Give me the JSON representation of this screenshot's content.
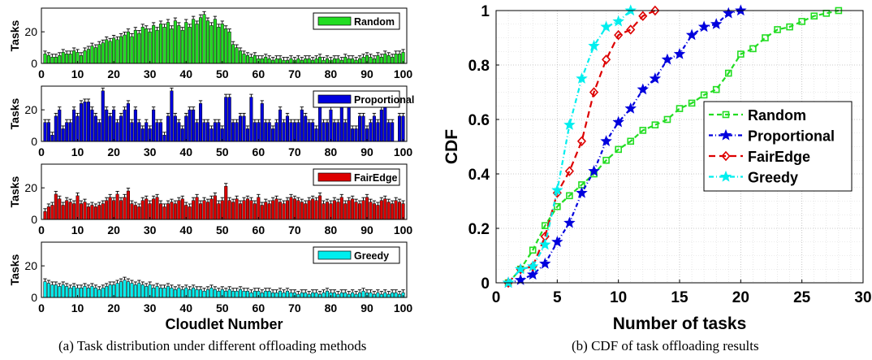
{
  "left_figure": {
    "caption": "(a)  Task distribution under different offloading methods",
    "xlabel": "Cloudlet Number",
    "ylabel": "Tasks",
    "xticks": [
      0,
      10,
      20,
      30,
      40,
      50,
      60,
      70,
      80,
      90,
      100
    ],
    "yticks": [
      0,
      20
    ],
    "ylim": [
      0,
      35
    ],
    "xlim": [
      0,
      101
    ]
  },
  "right_figure": {
    "caption": "(b)  CDF of task offloading results"
  },
  "chart_data": [
    {
      "type": "bar",
      "legend": "Random",
      "color": "#22dd22",
      "xlabel": "",
      "ylabel": "Tasks",
      "ylim": [
        0,
        35
      ],
      "xlim": [
        0,
        101
      ],
      "values": [
        6,
        5,
        4,
        4,
        5,
        7,
        6,
        6,
        8,
        7,
        5,
        8,
        9,
        11,
        10,
        12,
        13,
        15,
        14,
        16,
        15,
        17,
        18,
        20,
        17,
        21,
        19,
        23,
        22,
        20,
        24,
        21,
        25,
        23,
        26,
        22,
        27,
        24,
        21,
        26,
        23,
        28,
        25,
        29,
        31,
        27,
        24,
        28,
        23,
        25,
        22,
        20,
        12,
        10,
        8,
        6,
        5,
        4,
        5,
        3,
        3,
        4,
        3,
        2,
        3,
        3,
        2,
        2,
        3,
        2,
        3,
        2,
        3,
        3,
        2,
        3,
        4,
        2,
        3,
        2,
        3,
        3,
        2,
        4,
        3,
        3,
        2,
        3,
        4,
        5,
        4,
        3,
        5,
        4,
        6,
        5,
        4,
        6,
        6,
        7
      ]
    },
    {
      "type": "bar",
      "legend": "Proportional",
      "color": "#0000dd",
      "xlabel": "",
      "ylabel": "Tasks",
      "ylim": [
        0,
        35
      ],
      "xlim": [
        0,
        101
      ],
      "values": [
        12,
        12,
        4,
        16,
        20,
        8,
        12,
        12,
        20,
        16,
        24,
        25,
        25,
        20,
        16,
        12,
        32,
        20,
        16,
        20,
        12,
        16,
        20,
        24,
        12,
        20,
        12,
        8,
        12,
        8,
        20,
        12,
        12,
        4,
        16,
        32,
        16,
        12,
        8,
        16,
        20,
        20,
        12,
        24,
        12,
        12,
        8,
        12,
        12,
        8,
        28,
        28,
        12,
        12,
        16,
        16,
        8,
        28,
        12,
        12,
        24,
        12,
        12,
        8,
        12,
        20,
        12,
        16,
        12,
        12,
        12,
        20,
        16,
        12,
        12,
        8,
        24,
        12,
        12,
        20,
        12,
        12,
        24,
        12,
        28,
        8,
        8,
        16,
        16,
        8,
        12,
        16,
        12,
        20,
        28,
        12,
        12,
        0,
        16,
        16
      ]
    },
    {
      "type": "bar",
      "legend": "FairEdge",
      "color": "#dd0000",
      "xlabel": "",
      "ylabel": "Tasks",
      "ylim": [
        0,
        35
      ],
      "xlim": [
        0,
        101
      ],
      "values": [
        5,
        8,
        9,
        16,
        13,
        9,
        12,
        11,
        10,
        15,
        10,
        11,
        8,
        9,
        8,
        9,
        10,
        12,
        14,
        12,
        16,
        12,
        14,
        18,
        10,
        9,
        8,
        12,
        13,
        10,
        13,
        14,
        10,
        8,
        10,
        11,
        10,
        12,
        13,
        9,
        8,
        12,
        14,
        10,
        12,
        11,
        13,
        15,
        10,
        12,
        21,
        12,
        11,
        13,
        10,
        12,
        13,
        12,
        10,
        14,
        9,
        11,
        10,
        12,
        13,
        11,
        10,
        12,
        14,
        13,
        12,
        11,
        10,
        12,
        13,
        12,
        15,
        10,
        11,
        10,
        12,
        11,
        14,
        10,
        12,
        13,
        11,
        10,
        12,
        14,
        11,
        10,
        9,
        12,
        13,
        11,
        10,
        12,
        11,
        10
      ]
    },
    {
      "type": "bar",
      "legend": "Greedy",
      "color": "#00eeee",
      "xlabel": "Cloudlet Number",
      "ylabel": "Tasks",
      "ylim": [
        0,
        35
      ],
      "xlim": [
        0,
        101
      ],
      "values": [
        10,
        9,
        8,
        8,
        7,
        8,
        7,
        6,
        7,
        6,
        6,
        7,
        6,
        7,
        6,
        5,
        6,
        7,
        8,
        8,
        9,
        10,
        11,
        10,
        9,
        8,
        9,
        8,
        7,
        8,
        6,
        7,
        6,
        6,
        7,
        6,
        5,
        6,
        5,
        6,
        5,
        6,
        5,
        5,
        4,
        5,
        6,
        5,
        4,
        5,
        4,
        5,
        4,
        4,
        5,
        4,
        4,
        3,
        4,
        4,
        3,
        4,
        4,
        3,
        3,
        4,
        3,
        4,
        3,
        3,
        2,
        3,
        3,
        2,
        3,
        3,
        2,
        3,
        4,
        3,
        3,
        2,
        3,
        3,
        2,
        3,
        2,
        3,
        4,
        3,
        3,
        2,
        3,
        2,
        3,
        2,
        3,
        3,
        2,
        3
      ]
    },
    {
      "type": "line",
      "xlabel": "Number of tasks",
      "ylabel": "CDF",
      "xlim": [
        0,
        30
      ],
      "ylim": [
        0,
        1
      ],
      "xticks": [
        0,
        5,
        10,
        15,
        20,
        25,
        30
      ],
      "yticks": [
        0,
        0.2,
        0.4,
        0.6,
        0.8,
        1
      ],
      "grid": true,
      "legend_position": "center-right",
      "series": [
        {
          "name": "Random",
          "color": "#22dd22",
          "dash": "6,4",
          "marker": "square",
          "x": [
            1,
            2,
            3,
            4,
            5,
            6,
            7,
            8,
            9,
            10,
            11,
            12,
            13,
            14,
            15,
            16,
            17,
            18,
            19,
            20,
            21,
            22,
            23,
            24,
            25,
            26,
            27,
            28
          ],
          "y": [
            0,
            0.05,
            0.12,
            0.21,
            0.28,
            0.32,
            0.36,
            0.4,
            0.45,
            0.49,
            0.52,
            0.56,
            0.58,
            0.6,
            0.64,
            0.66,
            0.69,
            0.71,
            0.77,
            0.84,
            0.86,
            0.9,
            0.93,
            0.94,
            0.96,
            0.98,
            0.99,
            1.0
          ]
        },
        {
          "name": "Proportional",
          "color": "#0000dd",
          "dash": "5,3,1,3",
          "marker": "star",
          "x": [
            1,
            2,
            3,
            4,
            5,
            6,
            7,
            8,
            9,
            10,
            11,
            12,
            13,
            14,
            15,
            16,
            17,
            18,
            19,
            20
          ],
          "y": [
            0,
            0.01,
            0.03,
            0.07,
            0.15,
            0.22,
            0.33,
            0.41,
            0.52,
            0.59,
            0.64,
            0.71,
            0.75,
            0.82,
            0.84,
            0.91,
            0.94,
            0.95,
            0.99,
            1.0
          ]
        },
        {
          "name": "FairEdge",
          "color": "#dd0000",
          "dash": "8,5",
          "marker": "diamond",
          "x": [
            1,
            2,
            3,
            4,
            5,
            6,
            7,
            8,
            9,
            10,
            11,
            12,
            13
          ],
          "y": [
            0,
            0.05,
            0.06,
            0.17,
            0.33,
            0.41,
            0.52,
            0.7,
            0.82,
            0.91,
            0.93,
            0.98,
            1.0
          ]
        },
        {
          "name": "Greedy",
          "color": "#00eeee",
          "dash": "6,3,1,3",
          "marker": "star",
          "x": [
            1,
            2,
            3,
            4,
            5,
            6,
            7,
            8,
            9,
            10,
            11
          ],
          "y": [
            0,
            0.05,
            0.06,
            0.14,
            0.34,
            0.58,
            0.75,
            0.87,
            0.94,
            0.96,
            1.0
          ]
        }
      ]
    }
  ]
}
